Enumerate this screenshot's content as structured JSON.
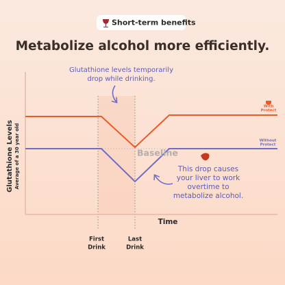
{
  "badge": "Short-term benefits",
  "title": "Metabolize alcohol more efficiently.",
  "annotation_top": [
    "Glutathione levels temporarily",
    "drop while drinking."
  ],
  "annotation_callout": [
    "This drop causes",
    "your liver to work",
    "overtime to",
    "metabolize alcohol."
  ],
  "legend": {
    "with": [
      "With",
      "Protect"
    ],
    "without": [
      "Without",
      "Protect"
    ]
  },
  "baseline_label": "Baseline",
  "y_axis": {
    "label": "Glutathione Levels",
    "sublabel": "Average of a 30 year old"
  },
  "x_axis": {
    "label": "Time",
    "markers": [
      [
        "First",
        "Drink"
      ],
      [
        "Last",
        "Drink"
      ]
    ]
  }
}
